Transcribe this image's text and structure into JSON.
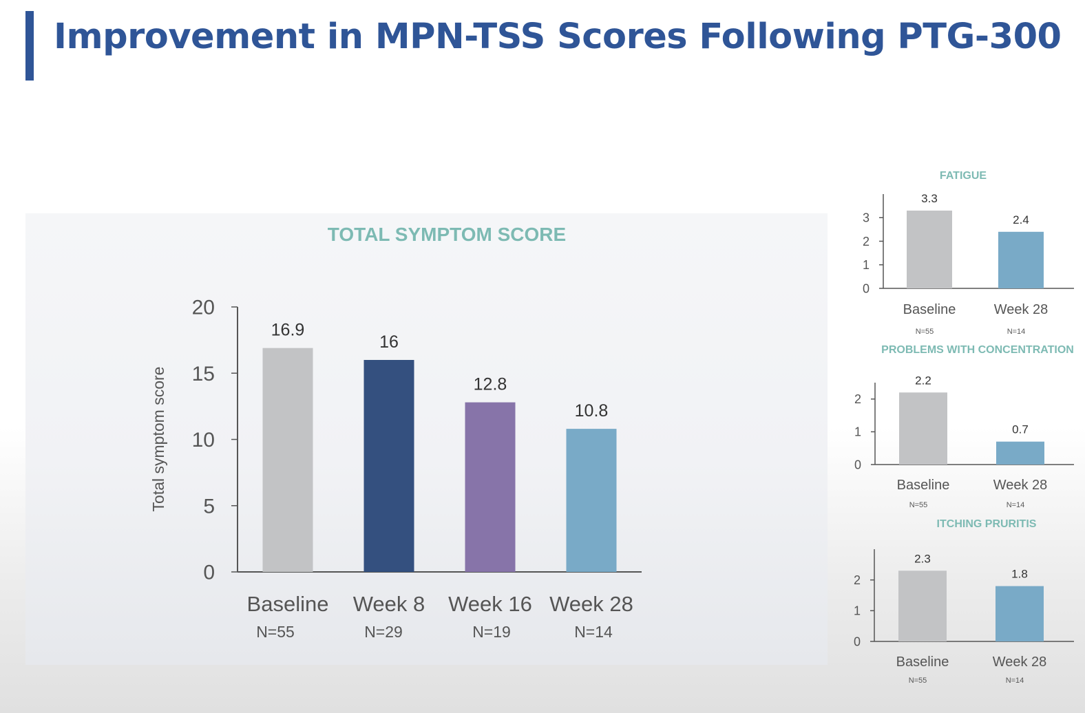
{
  "slide": {
    "title": "Improvement in MPN-TSS Scores Following PTG-300",
    "accent_color": "#2f5597"
  },
  "chart_data": [
    {
      "type": "bar",
      "title": "TOTAL SYMPTOM SCORE",
      "ylabel": "Total symptom score",
      "xlabel": "",
      "categories": [
        "Baseline",
        "Week 8",
        "Week 16",
        "Week 28"
      ],
      "n_labels": [
        "N=55",
        "N=29",
        "N=19",
        "N=14"
      ],
      "values": [
        16.9,
        16,
        12.8,
        10.8
      ],
      "colors": [
        "#c2c3c5",
        "#34507f",
        "#8774a9",
        "#79aac7"
      ],
      "ylim": [
        0,
        20
      ],
      "yticks": [
        0,
        5,
        10,
        15,
        20
      ],
      "grid": false,
      "legend": "none"
    },
    {
      "type": "bar",
      "title": "FATIGUE",
      "categories": [
        "Baseline",
        "Week 28"
      ],
      "n_labels": [
        "N=55",
        "N=14"
      ],
      "values": [
        3.3,
        2.4
      ],
      "colors": [
        "#c2c3c5",
        "#79aac7"
      ],
      "ylim": [
        0,
        4
      ],
      "yticks": [
        0,
        1,
        2,
        3
      ],
      "grid": false,
      "legend": "none"
    },
    {
      "type": "bar",
      "title": "PROBLEMS WITH CONCENTRATION",
      "categories": [
        "Baseline",
        "Week 28"
      ],
      "n_labels": [
        "N=55",
        "N=14"
      ],
      "values": [
        2.2,
        0.7
      ],
      "colors": [
        "#c2c3c5",
        "#79aac7"
      ],
      "ylim": [
        0,
        2.5
      ],
      "yticks": [
        0,
        1,
        2
      ],
      "grid": false,
      "legend": "none"
    },
    {
      "type": "bar",
      "title": "ITCHING PRURITIS",
      "categories": [
        "Baseline",
        "Week 28"
      ],
      "n_labels": [
        "N=55",
        "N=14"
      ],
      "values": [
        2.3,
        1.8
      ],
      "colors": [
        "#c2c3c5",
        "#79aac7"
      ],
      "ylim": [
        0,
        3
      ],
      "yticks": [
        0,
        1,
        2
      ],
      "grid": false,
      "legend": "none"
    }
  ]
}
